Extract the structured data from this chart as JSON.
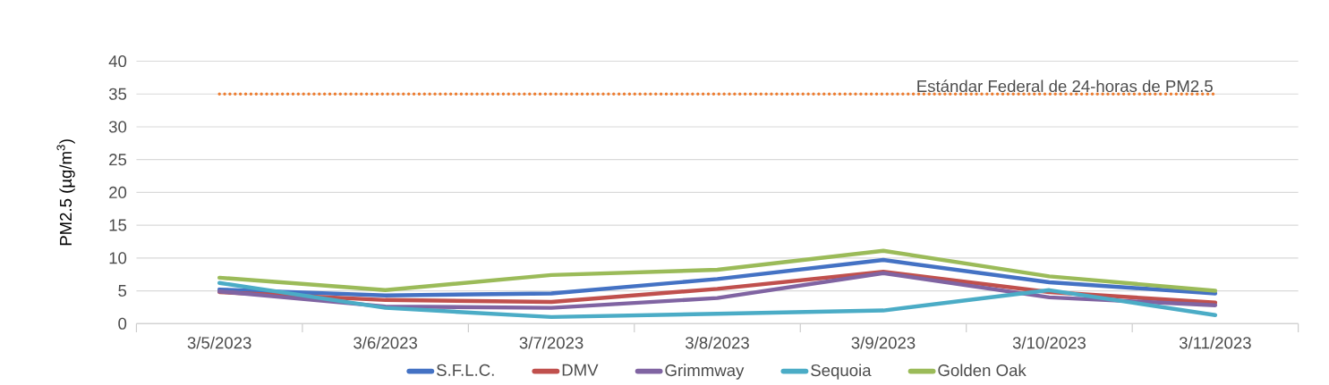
{
  "chart_data": {
    "type": "line",
    "ylabel": "PM2.5 (µg/m$^{3}$)",
    "categories": [
      "3/5/2023",
      "3/6/2023",
      "3/7/2023",
      "3/8/2023",
      "3/9/2023",
      "3/10/2023",
      "3/11/2023"
    ],
    "series": [
      {
        "name": "S.F.L.C.",
        "color": "#4472c4",
        "values": [
          5.2,
          4.3,
          4.6,
          6.8,
          9.7,
          6.3,
          4.6
        ]
      },
      {
        "name": "DMV",
        "color": "#c0504d",
        "values": [
          4.8,
          3.6,
          3.3,
          5.3,
          7.9,
          4.8,
          3.2
        ]
      },
      {
        "name": "Grimmway",
        "color": "#8064a2",
        "values": [
          4.9,
          2.6,
          2.4,
          3.9,
          7.7,
          4.0,
          2.8
        ]
      },
      {
        "name": "Sequoia",
        "color": "#4bacc6",
        "values": [
          6.2,
          2.4,
          1.0,
          1.5,
          2.0,
          5.1,
          1.3
        ]
      },
      {
        "name": "Golden Oak",
        "color": "#9bbb59",
        "values": [
          7.0,
          5.1,
          7.4,
          8.2,
          11.1,
          7.2,
          5.0
        ]
      }
    ],
    "ylim": [
      0,
      40
    ],
    "yticks": [
      0,
      5,
      10,
      15,
      20,
      25,
      30,
      35,
      40
    ],
    "ref_lines": [
      {
        "axis": "y",
        "value": 35,
        "label": "Estándar Federal de 24-horas de PM2.5",
        "color": "#ed7d31",
        "line_style": "dotted"
      }
    ],
    "grid": "y",
    "legend": "bottom",
    "marker": "none",
    "line_style": "solid"
  }
}
